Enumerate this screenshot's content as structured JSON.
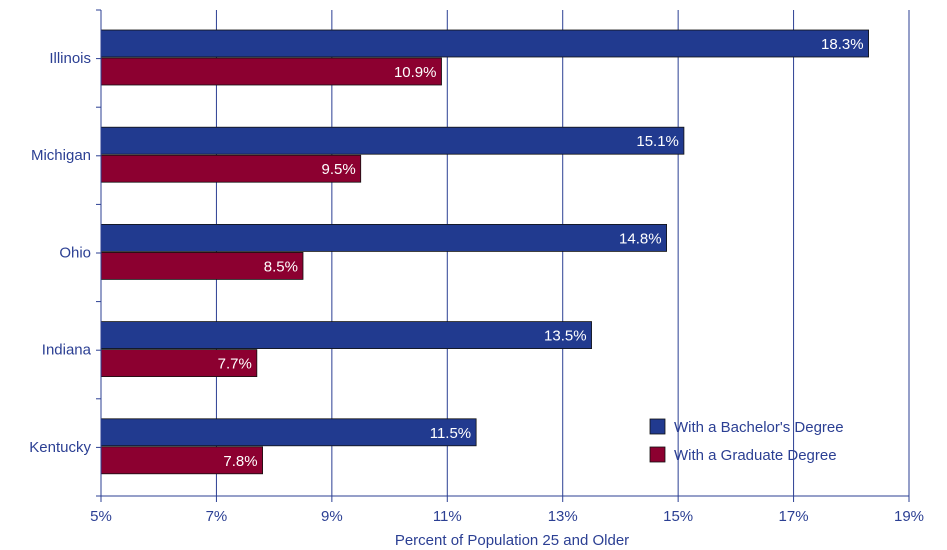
{
  "chart_data": {
    "type": "bar",
    "orientation": "horizontal",
    "categories": [
      "Illinois",
      "Michigan",
      "Ohio",
      "Indiana",
      "Kentucky"
    ],
    "series": [
      {
        "name": "With a Bachelor's Degree",
        "values": [
          18.3,
          15.1,
          14.8,
          13.5,
          11.5
        ],
        "color": "#213a8f"
      },
      {
        "name": "With a Graduate Degree",
        "values": [
          10.9,
          9.5,
          8.5,
          7.7,
          7.8
        ],
        "color": "#8c0030"
      }
    ],
    "xlabel": "Percent of Population 25 and Older",
    "xlim": [
      5,
      19
    ],
    "xticks": [
      5,
      7,
      9,
      11,
      13,
      15,
      17,
      19
    ],
    "xtick_labels": [
      "5%",
      "7%",
      "9%",
      "11%",
      "13%",
      "15%",
      "17%",
      "19%"
    ],
    "data_labels": [
      [
        "18.3%",
        "15.1%",
        "14.8%",
        "13.5%",
        "11.5%"
      ],
      [
        "10.9%",
        "9.5%",
        "8.5%",
        "7.7%",
        "7.8%"
      ]
    ],
    "grid": "vertical",
    "legend": "bottom-right",
    "axis_color": "#2b3f93"
  }
}
